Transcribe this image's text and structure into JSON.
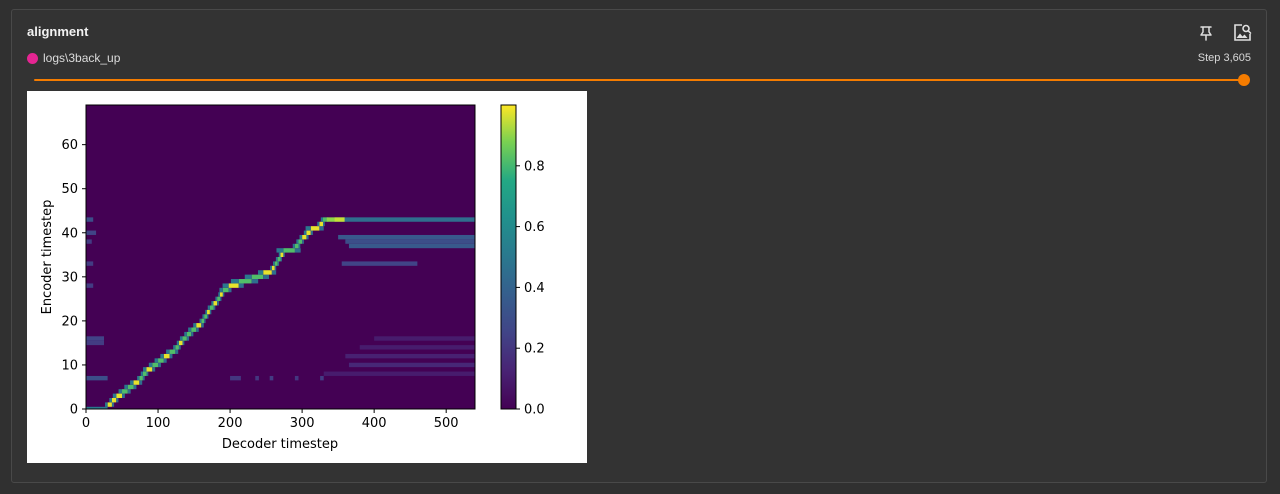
{
  "card": {
    "title": "alignment",
    "run": {
      "name": "logs\\3back_up",
      "color": "#e52592"
    },
    "step_label": "Step 3,605",
    "step_progress": 1.0,
    "accent_color": "#f57c00",
    "icons": [
      "pin-icon",
      "image-search-icon"
    ]
  },
  "chart_data": {
    "type": "heatmap",
    "title": "",
    "xlabel": "Decoder timestep",
    "ylabel": "Encoder timestep",
    "xlim": [
      0,
      540
    ],
    "ylim": [
      0,
      69
    ],
    "xticks": [
      "0",
      "100",
      "200",
      "300",
      "400",
      "500"
    ],
    "yticks": [
      "0",
      "10",
      "20",
      "30",
      "40",
      "50",
      "60"
    ],
    "colorbar": {
      "ticks": [
        "0.0",
        "0.2",
        "0.4",
        "0.6",
        "0.8"
      ],
      "range": [
        0,
        1
      ],
      "colormap": "viridis"
    },
    "alignment_path": [
      [
        0,
        0
      ],
      [
        30,
        0
      ],
      [
        36,
        1
      ],
      [
        42,
        2
      ],
      [
        50,
        3
      ],
      [
        58,
        4
      ],
      [
        66,
        5
      ],
      [
        74,
        6
      ],
      [
        84,
        8
      ],
      [
        92,
        9
      ],
      [
        100,
        10
      ],
      [
        108,
        11
      ],
      [
        116,
        12
      ],
      [
        124,
        13
      ],
      [
        134,
        15
      ],
      [
        146,
        17
      ],
      [
        160,
        19
      ],
      [
        172,
        22
      ],
      [
        182,
        24
      ],
      [
        190,
        26
      ],
      [
        198,
        27
      ],
      [
        212,
        28
      ],
      [
        230,
        29
      ],
      [
        246,
        30
      ],
      [
        258,
        31
      ],
      [
        266,
        33
      ],
      [
        274,
        35
      ],
      [
        290,
        36
      ],
      [
        300,
        38
      ],
      [
        312,
        40
      ],
      [
        324,
        41
      ],
      [
        334,
        43
      ],
      [
        345,
        43
      ],
      [
        540,
        43
      ]
    ],
    "trailing_bands": [
      {
        "y": 43,
        "x": [
          345,
          540
        ],
        "value": 0.45
      },
      {
        "y": 39,
        "x": [
          350,
          540
        ],
        "value": 0.35
      },
      {
        "y": 38,
        "x": [
          360,
          540
        ],
        "value": 0.3
      },
      {
        "y": 37,
        "x": [
          365,
          540
        ],
        "value": 0.35
      },
      {
        "y": 33,
        "x": [
          355,
          460
        ],
        "value": 0.25
      }
    ],
    "faint_marks": [
      {
        "y": 43,
        "x": [
          0,
          10
        ],
        "value": 0.3
      },
      {
        "y": 40,
        "x": [
          0,
          14
        ],
        "value": 0.25
      },
      {
        "y": 38,
        "x": [
          0,
          8
        ],
        "value": 0.22
      },
      {
        "y": 33,
        "x": [
          0,
          10
        ],
        "value": 0.22
      },
      {
        "y": 28,
        "x": [
          0,
          10
        ],
        "value": 0.22
      },
      {
        "y": 16,
        "x": [
          0,
          25
        ],
        "value": 0.25
      },
      {
        "y": 15,
        "x": [
          0,
          25
        ],
        "value": 0.22
      },
      {
        "y": 7,
        "x": [
          0,
          30
        ],
        "value": 0.3
      },
      {
        "y": 7,
        "x": [
          200,
          215
        ],
        "value": 0.2
      },
      {
        "y": 7,
        "x": [
          235,
          240
        ],
        "value": 0.2
      },
      {
        "y": 7,
        "x": [
          255,
          260
        ],
        "value": 0.22
      },
      {
        "y": 7,
        "x": [
          290,
          295
        ],
        "value": 0.2
      },
      {
        "y": 7,
        "x": [
          325,
          330
        ],
        "value": 0.22
      },
      {
        "y": 10,
        "x": [
          365,
          540
        ],
        "value": 0.14
      },
      {
        "y": 12,
        "x": [
          360,
          540
        ],
        "value": 0.12
      },
      {
        "y": 14,
        "x": [
          380,
          540
        ],
        "value": 0.1
      },
      {
        "y": 16,
        "x": [
          400,
          540
        ],
        "value": 0.1
      },
      {
        "y": 8,
        "x": [
          330,
          540
        ],
        "value": 0.1
      }
    ]
  }
}
